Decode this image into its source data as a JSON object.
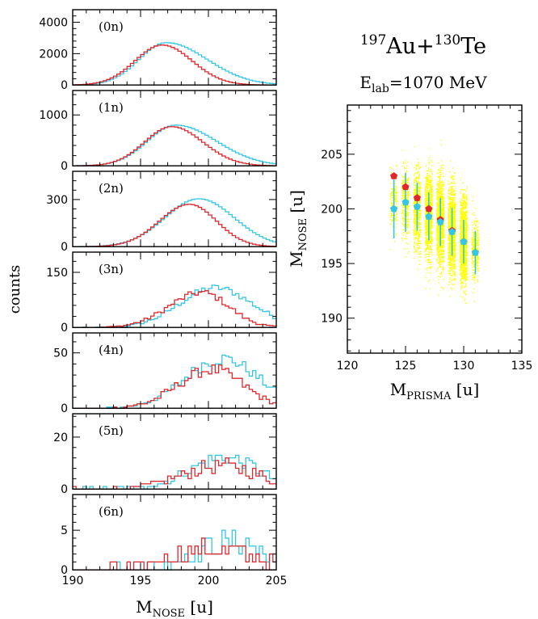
{
  "figure": {
    "title_reaction": {
      "a1": "197",
      "e1": "Au",
      "plus": "+",
      "a2": "130",
      "e2": "Te"
    },
    "title_energy": {
      "prefix": "E",
      "sub": "lab",
      "rest": "=1070 MeV"
    },
    "y_label": "counts",
    "x_label": {
      "main": "M",
      "sub": "NOSE",
      "unit": " [u]"
    },
    "colors": {
      "series_cyan": "#34c6e6",
      "series_red": "#e0282c",
      "scatter": "#ffff00",
      "axis": "#000000"
    }
  },
  "chart_data": [
    {
      "type": "histogram",
      "panel_label": "(0n)",
      "xlim": [
        190,
        205
      ],
      "ylim": [
        0,
        4800
      ],
      "y_ticks": [
        0,
        2000,
        4000
      ],
      "x_ticks": [
        190,
        195,
        200,
        205
      ],
      "x_tick_labels": [
        "",
        "",
        "",
        ""
      ],
      "series": [
        {
          "color": "cyan",
          "center": 196.9,
          "sigma_left": 2.0,
          "sigma_right": 3.0,
          "peak": 2700
        },
        {
          "color": "red",
          "center": 196.6,
          "sigma_left": 2.0,
          "sigma_right": 2.2,
          "peak": 2550
        }
      ]
    },
    {
      "type": "histogram",
      "panel_label": "(1n)",
      "xlim": [
        190,
        205
      ],
      "ylim": [
        0,
        1480
      ],
      "y_ticks": [
        0,
        1000
      ],
      "x_ticks": [
        190,
        195,
        200,
        205
      ],
      "x_tick_labels": [
        "",
        "",
        "",
        ""
      ],
      "series": [
        {
          "color": "cyan",
          "center": 197.6,
          "sigma_left": 2.1,
          "sigma_right": 3.0,
          "peak": 800
        },
        {
          "color": "red",
          "center": 197.3,
          "sigma_left": 2.0,
          "sigma_right": 2.3,
          "peak": 770
        }
      ]
    },
    {
      "type": "histogram",
      "panel_label": "(2n)",
      "xlim": [
        190,
        205
      ],
      "ylim": [
        0,
        480
      ],
      "y_ticks": [
        0,
        300
      ],
      "x_ticks": [
        190,
        195,
        200,
        205
      ],
      "x_tick_labels": [
        "",
        "",
        "",
        ""
      ],
      "series": [
        {
          "color": "cyan",
          "center": 199.3,
          "sigma_left": 2.5,
          "sigma_right": 2.6,
          "peak": 305
        },
        {
          "color": "red",
          "center": 198.6,
          "sigma_left": 2.2,
          "sigma_right": 2.0,
          "peak": 270
        }
      ]
    },
    {
      "type": "histogram",
      "panel_label": "(3n)",
      "xlim": [
        190,
        205
      ],
      "ylim": [
        0,
        205
      ],
      "y_ticks": [
        0,
        150
      ],
      "x_ticks": [
        190,
        195,
        200,
        205
      ],
      "x_tick_labels": [
        "",
        "",
        "",
        ""
      ],
      "series": [
        {
          "color": "cyan",
          "center": 200.5,
          "sigma_left": 2.6,
          "sigma_right": 2.7,
          "peak": 108
        },
        {
          "color": "red",
          "center": 199.5,
          "sigma_left": 2.4,
          "sigma_right": 2.0,
          "peak": 95
        }
      ]
    },
    {
      "type": "histogram",
      "panel_label": "(4n)",
      "xlim": [
        190,
        205
      ],
      "ylim": [
        0,
        68
      ],
      "y_ticks": [
        0,
        50
      ],
      "x_ticks": [
        190,
        195,
        200,
        205
      ],
      "x_tick_labels": [
        "",
        "",
        "",
        ""
      ],
      "series": [
        {
          "color": "cyan",
          "center": 201.0,
          "sigma_left": 2.7,
          "sigma_right": 2.7,
          "peak": 45
        },
        {
          "color": "red",
          "center": 200.3,
          "sigma_left": 2.5,
          "sigma_right": 2.3,
          "peak": 35
        }
      ]
    },
    {
      "type": "histogram",
      "panel_label": "(5n)",
      "xlim": [
        190,
        205
      ],
      "ylim": [
        0,
        29
      ],
      "y_ticks": [
        0,
        20
      ],
      "x_ticks": [
        190,
        195,
        200,
        205
      ],
      "x_tick_labels": [
        "",
        "",
        "",
        ""
      ],
      "series": [
        {
          "color": "cyan",
          "center": 201.2,
          "sigma_left": 2.6,
          "sigma_right": 2.5,
          "peak": 12
        },
        {
          "color": "red",
          "center": 201.0,
          "sigma_left": 2.9,
          "sigma_right": 2.7,
          "peak": 9
        }
      ]
    },
    {
      "type": "histogram",
      "panel_label": "(6n)",
      "xlim": [
        190,
        205
      ],
      "ylim": [
        0,
        9.5
      ],
      "y_ticks": [
        0,
        5
      ],
      "x_ticks": [
        190,
        195,
        200,
        205
      ],
      "x_tick_labels": [
        "190",
        "195",
        "200",
        "205"
      ],
      "series": [
        {
          "color": "cyan",
          "center": 201.5,
          "sigma_left": 2.6,
          "sigma_right": 2.6,
          "peak": 3.5
        },
        {
          "color": "red",
          "center": 200.5,
          "sigma_left": 3.2,
          "sigma_right": 3.0,
          "peak": 2.6
        }
      ]
    },
    {
      "type": "scatter",
      "xlim": [
        120,
        135
      ],
      "ylim": [
        186.8,
        209.5
      ],
      "x_ticks": [
        120,
        125,
        130,
        135
      ],
      "y_ticks": [
        190,
        195,
        200,
        205
      ],
      "xlabel": {
        "main": "M",
        "sub": "PRISMA",
        "unit": " [u]"
      },
      "ylabel": {
        "main": "M",
        "sub": "NOSE",
        "unit": " [u]"
      },
      "scatter_columns": [
        {
          "x": 124,
          "y_center": 200.5,
          "y_spread": 2.2,
          "density": 0.12
        },
        {
          "x": 125,
          "y_center": 200.3,
          "y_spread": 3.0,
          "density": 0.25
        },
        {
          "x": 126,
          "y_center": 199.8,
          "y_spread": 3.4,
          "density": 0.45
        },
        {
          "x": 127,
          "y_center": 199.3,
          "y_spread": 3.6,
          "density": 0.7
        },
        {
          "x": 128,
          "y_center": 198.8,
          "y_spread": 3.6,
          "density": 0.9
        },
        {
          "x": 129,
          "y_center": 198.0,
          "y_spread": 3.5,
          "density": 1.0
        },
        {
          "x": 130,
          "y_center": 197.0,
          "y_spread": 3.5,
          "density": 1.0
        },
        {
          "x": 131,
          "y_center": 196.2,
          "y_spread": 2.5,
          "density": 0.25
        }
      ],
      "series": [
        {
          "name": "cyan",
          "marker": "pentagon",
          "points": [
            {
              "x": 124,
              "y": 200.0,
              "err": 2.7
            },
            {
              "x": 125,
              "y": 200.6,
              "err": 2.7
            },
            {
              "x": 126,
              "y": 200.2,
              "err": 2.2
            },
            {
              "x": 127,
              "y": 199.3,
              "err": 2.2
            },
            {
              "x": 128,
              "y": 198.8,
              "err": 2.2
            },
            {
              "x": 129,
              "y": 197.9,
              "err": 2.2
            },
            {
              "x": 130,
              "y": 197.0,
              "err": 2.0
            },
            {
              "x": 131,
              "y": 196.0,
              "err": 2.0
            }
          ]
        },
        {
          "name": "red",
          "marker": "pentagon",
          "points": [
            {
              "x": 124,
              "y": 203.0
            },
            {
              "x": 125,
              "y": 202.0
            },
            {
              "x": 126,
              "y": 201.0
            },
            {
              "x": 127,
              "y": 200.0
            },
            {
              "x": 128,
              "y": 199.0
            },
            {
              "x": 129,
              "y": 198.0
            },
            {
              "x": 130,
              "y": 197.0
            },
            {
              "x": 131,
              "y": 196.0
            }
          ]
        }
      ]
    }
  ]
}
